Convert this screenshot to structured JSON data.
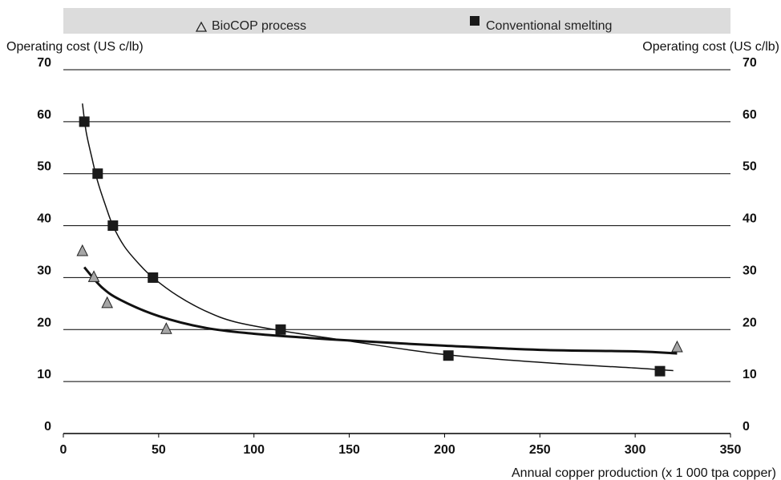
{
  "chart_data": {
    "type": "scatter",
    "title": "",
    "xlabel": "Annual copper production (x 1 000 tpa copper)",
    "ylabel_left": "Operating cost (US c/lb)",
    "ylabel_right": "Operating cost (US c/lb)",
    "xlim": [
      0,
      350
    ],
    "ylim": [
      0,
      70
    ],
    "x_ticks": [
      0,
      50,
      100,
      150,
      200,
      250,
      300,
      350
    ],
    "y_ticks": [
      0,
      10,
      20,
      30,
      40,
      50,
      60,
      70
    ],
    "grid": "horizontal",
    "legend_position": "top",
    "series": [
      {
        "name": "BioCOP process",
        "marker": "triangle",
        "color": "#a6a6a6",
        "points": [
          [
            10,
            35
          ],
          [
            16,
            30
          ],
          [
            23,
            25
          ],
          [
            54,
            20
          ],
          [
            322,
            16.5
          ]
        ],
        "trend": [
          [
            11,
            32
          ],
          [
            20,
            28.2
          ],
          [
            30,
            25.7
          ],
          [
            50,
            22.6
          ],
          [
            75,
            20.3
          ],
          [
            100,
            19.2
          ],
          [
            125,
            18.5
          ],
          [
            150,
            17.9
          ],
          [
            200,
            16.9
          ],
          [
            250,
            16.1
          ],
          [
            300,
            15.8
          ],
          [
            322,
            15.4
          ]
        ]
      },
      {
        "name": "Conventional smelting",
        "marker": "square",
        "color": "#1a1a1a",
        "points": [
          [
            11,
            60
          ],
          [
            18,
            50
          ],
          [
            26,
            40
          ],
          [
            47,
            30
          ],
          [
            114,
            20
          ],
          [
            202,
            15
          ],
          [
            313,
            12
          ]
        ],
        "trend": [
          [
            10,
            63.5
          ],
          [
            12,
            58
          ],
          [
            15,
            53
          ],
          [
            18,
            48.5
          ],
          [
            22,
            44
          ],
          [
            26,
            40
          ],
          [
            32,
            36
          ],
          [
            40,
            32.5
          ],
          [
            47,
            30
          ],
          [
            60,
            26.5
          ],
          [
            75,
            23.5
          ],
          [
            90,
            21.5
          ],
          [
            114,
            19.8
          ],
          [
            150,
            17.8
          ],
          [
            200,
            15.2
          ],
          [
            250,
            13.7
          ],
          [
            300,
            12.6
          ],
          [
            320,
            12.1
          ]
        ]
      }
    ]
  }
}
